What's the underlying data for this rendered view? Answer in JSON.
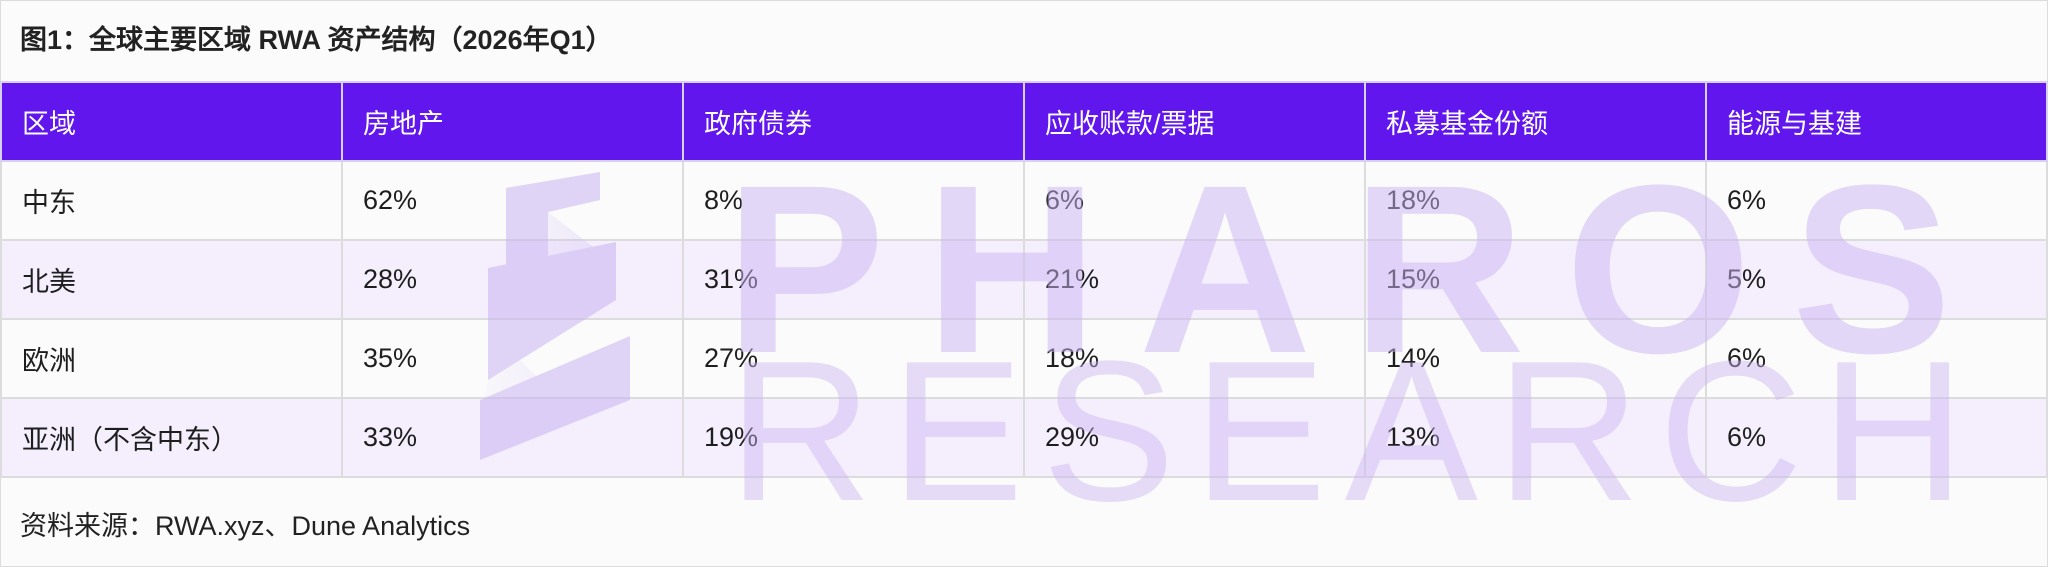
{
  "title": "图1：全球主要区域 RWA 资产结构（2026年Q1）",
  "colors": {
    "header_bg": "#6016ec",
    "row_alt_bg": "#f4eefd",
    "watermark": "#c9b3f2"
  },
  "watermark": {
    "line1": "PHAROS",
    "line2": "RESEARCH",
    "logo": "pharos-logo-icon"
  },
  "table": {
    "headers": [
      "区域",
      "房地产",
      "政府债券",
      "应收账款/票据",
      "私募基金份额",
      "能源与基建"
    ],
    "rows": [
      [
        "中东",
        "62%",
        "8%",
        "6%",
        "18%",
        "6%"
      ],
      [
        "北美",
        "28%",
        "31%",
        "21%",
        "15%",
        "5%"
      ],
      [
        "欧洲",
        "35%",
        "27%",
        "18%",
        "14%",
        "6%"
      ],
      [
        "亚洲（不含中东）",
        "33%",
        "19%",
        "29%",
        "13%",
        "6%"
      ]
    ]
  },
  "source": "资料来源：RWA.xyz、Dune Analytics"
}
